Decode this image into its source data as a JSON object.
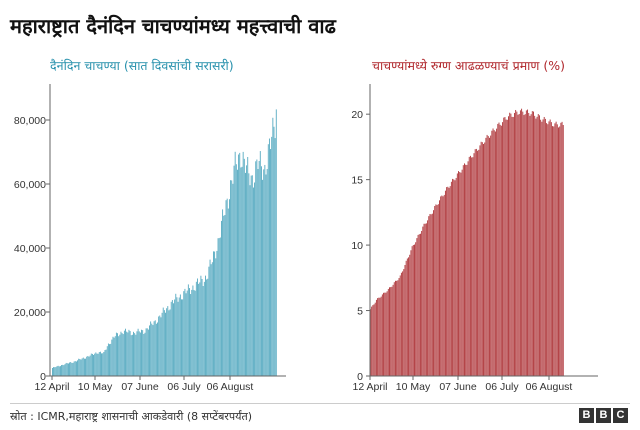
{
  "title": "महाराष्ट्रात दैनंदिन चाचण्यांमध्य महत्त्वाची वाढ",
  "source": "स्रोत : ICMR,महाराष्ट्र शासनाची आकडेवारी (8 सप्टेंबरपर्यंत)",
  "logo": [
    "B",
    "B",
    "C"
  ],
  "colors": {
    "tests": "#54a9c0",
    "positivity": "#b03a3e",
    "axis": "#666666",
    "grid": "#dddddd"
  },
  "chart_data": [
    {
      "type": "bar",
      "title": "दैनंदिन चाचण्या (सात दिवसांची सरासरी)",
      "x_tick_labels": [
        "12 April",
        "10 May",
        "07 June",
        "06 July",
        "06 August"
      ],
      "y_tick_labels": [
        "0",
        "20,000",
        "40,000",
        "60,000",
        "80,000"
      ],
      "ylim": [
        0,
        90000
      ],
      "grid": false,
      "x_start": "2020-04-12",
      "x_end": "2020-09-08",
      "series": [
        {
          "values": [
            [
              0,
              2500
            ],
            [
              10,
              3600
            ],
            [
              20,
              4600
            ],
            [
              28,
              5700
            ],
            [
              34,
              6500
            ],
            [
              40,
              7500
            ],
            [
              45,
              7000
            ],
            [
              48,
              9500
            ],
            [
              55,
              12500
            ],
            [
              62,
              14000
            ],
            [
              70,
              13500
            ],
            [
              80,
              14000
            ],
            [
              85,
              15500
            ],
            [
              90,
              17000
            ],
            [
              95,
              19000
            ],
            [
              100,
              21000
            ],
            [
              105,
              23000
            ],
            [
              112,
              25000
            ],
            [
              120,
              27000
            ],
            [
              128,
              29000
            ],
            [
              135,
              31000
            ],
            [
              140,
              36000
            ],
            [
              145,
              42000
            ],
            [
              150,
              50000
            ],
            [
              155,
              58000
            ],
            [
              160,
              65000
            ],
            [
              165,
              70000
            ],
            [
              170,
              64000
            ],
            [
              175,
              62000
            ],
            [
              180,
              66000
            ],
            [
              186,
              65000
            ],
            [
              191,
              72000
            ],
            [
              193,
              76000
            ],
            [
              195,
              80000
            ],
            [
              196,
              85000
            ]
          ]
        }
      ]
    },
    {
      "type": "bar",
      "title": "चाचण्यांमध्ये रुग्ण आढळण्याचं प्रमाण (%)",
      "x_tick_labels": [
        "12 April",
        "10 May",
        "07 June",
        "06 July",
        "06 August"
      ],
      "y_tick_labels": [
        "0",
        "5",
        "10",
        "15",
        "20"
      ],
      "ylim": [
        0,
        22
      ],
      "grid": false,
      "x_start": "2020-04-12",
      "x_end": "2020-09-08",
      "series": [
        {
          "values": [
            [
              0,
              5.1
            ],
            [
              5,
              5.8
            ],
            [
              15,
              6.6
            ],
            [
              25,
              7.6
            ],
            [
              35,
              9.8
            ],
            [
              45,
              11.5
            ],
            [
              55,
              13.0
            ],
            [
              65,
              14.4
            ],
            [
              75,
              15.6
            ],
            [
              85,
              16.8
            ],
            [
              95,
              17.9
            ],
            [
              105,
              18.9
            ],
            [
              115,
              19.8
            ],
            [
              125,
              20.2
            ],
            [
              135,
              20.1
            ],
            [
              145,
              19.6
            ],
            [
              155,
              19.2
            ],
            [
              162,
              19.2
            ]
          ]
        }
      ]
    }
  ]
}
